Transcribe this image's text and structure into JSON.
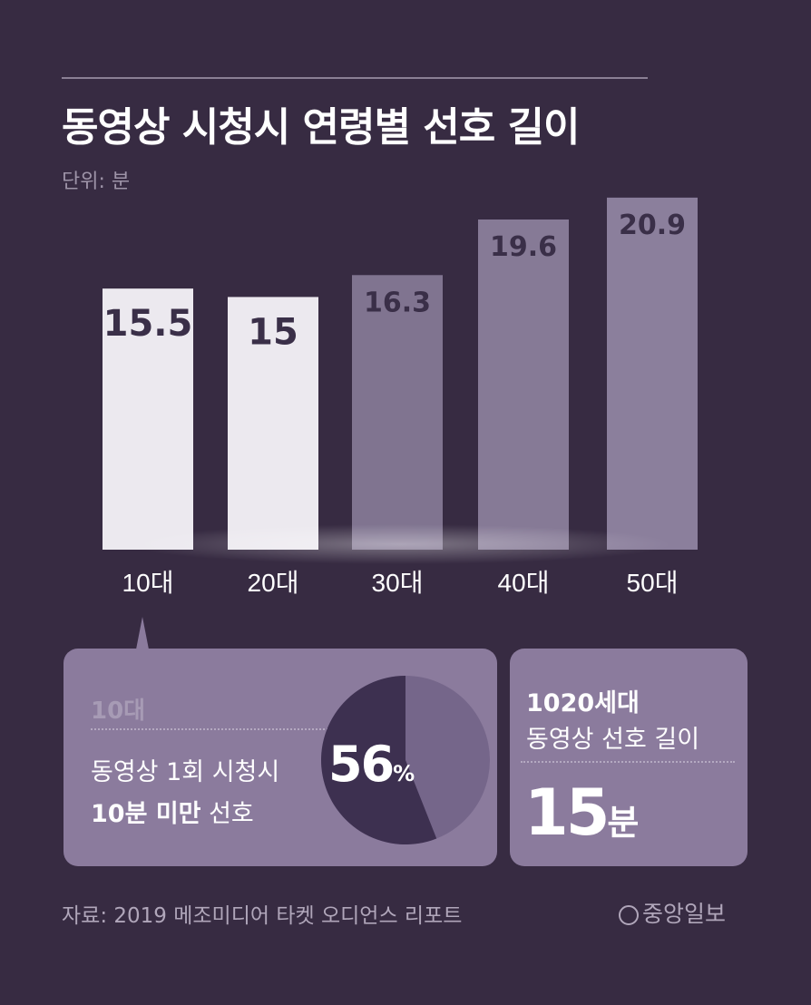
{
  "title": "동영상 시청시 연령별 선호 길이",
  "unit": "단위: 분",
  "chart_data": {
    "type": "bar",
    "title": "동영상 시청시 연령별 선호 길이",
    "ylabel": "단위: 분",
    "categories": [
      "10대",
      "20대",
      "30대",
      "40대",
      "50대"
    ],
    "values": [
      15.5,
      15,
      16.3,
      19.6,
      20.9
    ],
    "value_labels": [
      "15.5",
      "15",
      "16.3",
      "19.6",
      "20.9"
    ],
    "ylim": [
      0,
      21
    ],
    "grid": false,
    "colors": {
      "bar_light": "#ece9ef",
      "bar_mid": "#9a8eab",
      "label_dark": "#3a2f48"
    }
  },
  "panel_left": {
    "tag": "10대",
    "line1": "동영상 1회 시청시",
    "line2_bold": "10분 미만",
    "line2_rest": " 선호",
    "pie_value": 56,
    "pie_number": "56",
    "pie_unit": "%",
    "colors": {
      "slice": "#3d3050",
      "rest": "#75668a"
    }
  },
  "panel_right": {
    "line1": "1020세대",
    "line2": "동영상 선호 길이",
    "big_number": "15",
    "big_unit": "분"
  },
  "source": "자료: 2019 메조미디어 타켓 오디언스 리포트",
  "brand": "중앙일보",
  "brand_icon": "circle-j-icon"
}
